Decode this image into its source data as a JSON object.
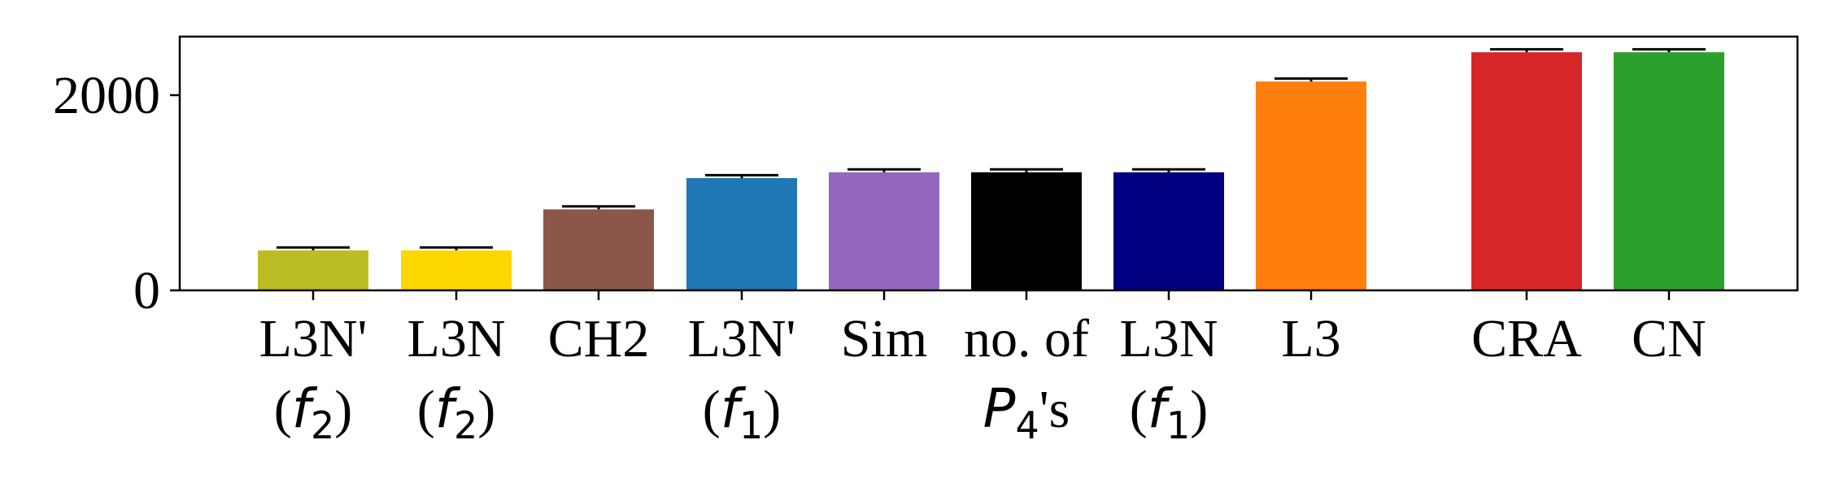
{
  "chart_data": {
    "type": "bar",
    "title": "",
    "xlabel": "",
    "ylabel": "",
    "ylim": [
      0,
      2600
    ],
    "yticks": [
      0,
      2000
    ],
    "ytick_labels": [
      "0",
      "2000"
    ],
    "grid": false,
    "legend": "none",
    "categories": [
      {
        "line1": "L3N'",
        "line2_math": "f",
        "line2_sub": "2",
        "paren": true
      },
      {
        "line1": "L3N",
        "line2_math": "f",
        "line2_sub": "2",
        "paren": true
      },
      {
        "line1": "CH2",
        "line2_math": "",
        "line2_sub": "",
        "paren": false
      },
      {
        "line1": "L3N'",
        "line2_math": "f",
        "line2_sub": "1",
        "paren": true
      },
      {
        "line1": "Sim",
        "line2_math": "",
        "line2_sub": "",
        "paren": false
      },
      {
        "line1": "no. of",
        "line2_math": "P",
        "line2_sub": "4",
        "line2_suffix": "'s",
        "paren": false
      },
      {
        "line1": "L3N",
        "line2_math": "f",
        "line2_sub": "1",
        "paren": true
      },
      {
        "line1": "L3",
        "line2_math": "",
        "line2_sub": "",
        "paren": false
      },
      {
        "line1": "CRA",
        "line2_math": "",
        "line2_sub": "",
        "paren": false
      },
      {
        "line1": "CN",
        "line2_math": "",
        "line2_sub": "",
        "paren": false
      }
    ],
    "values": [
      410,
      410,
      830,
      1150,
      1210,
      1210,
      1210,
      2140,
      2440,
      2440
    ],
    "error_tops": [
      440,
      440,
      860,
      1180,
      1240,
      1240,
      1240,
      2170,
      2470,
      2470
    ],
    "colors": [
      "#bcbd22",
      "#ffd700",
      "#8c564b",
      "#1f77b4",
      "#9467bd",
      "#000000",
      "#000080",
      "#ff7f0e",
      "#d62728",
      "#2ca02c"
    ]
  }
}
